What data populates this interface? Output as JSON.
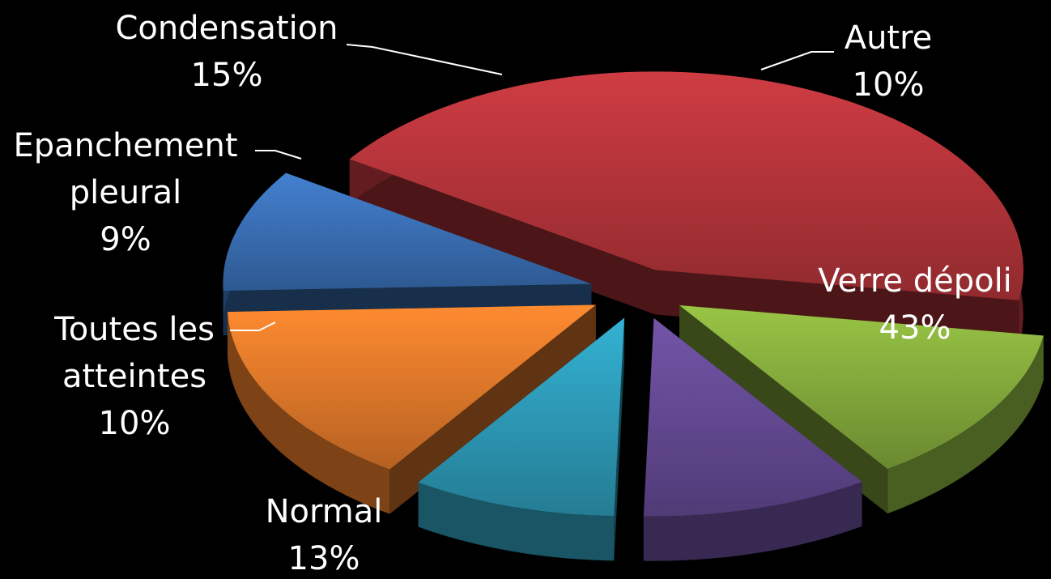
{
  "chart_data": {
    "type": "pie",
    "title": "",
    "legend": "none",
    "slices": [
      {
        "name": "Autre",
        "value": 10,
        "label": "10%",
        "color": "#3a6fb5"
      },
      {
        "name": "Verre dépoli",
        "value": 43,
        "label": "43%",
        "color": "#b4343a"
      },
      {
        "name": "Normal",
        "value": 13,
        "label": "13%",
        "color": "#85ab3c"
      },
      {
        "name": "Toutes les atteintes",
        "label_lines": [
          "Toutes les",
          "atteintes"
        ],
        "value": 10,
        "label": "10%",
        "color": "#644a93"
      },
      {
        "name": "Epanchement pleural",
        "label_lines": [
          "Epanchement",
          "pleural"
        ],
        "value": 9,
        "label": "9%",
        "color": "#2d9bb8"
      },
      {
        "name": "Condensation",
        "value": 15,
        "label": "15%",
        "color": "#e4792a"
      }
    ]
  }
}
